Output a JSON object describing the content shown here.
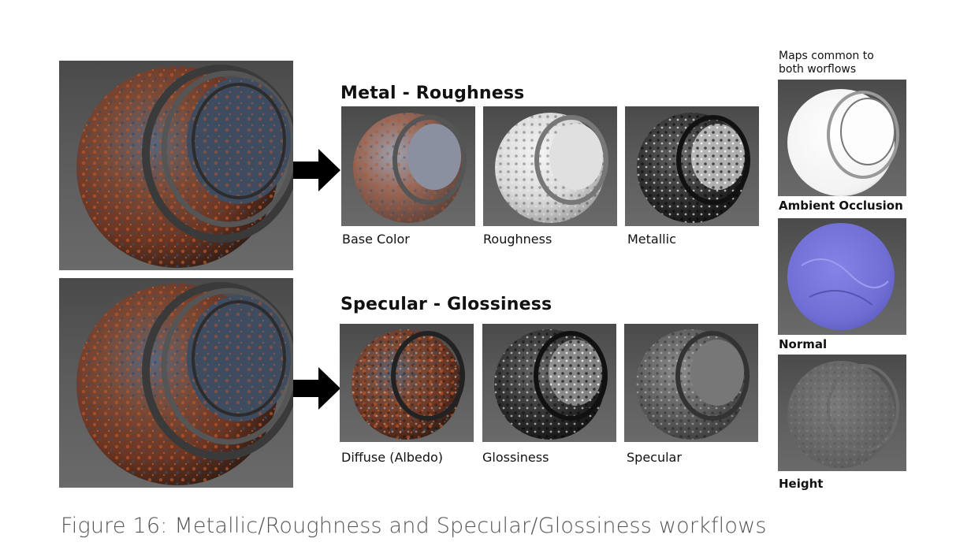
{
  "headings": {
    "metal": "Metal - Roughness",
    "specular": "Specular - Glossiness"
  },
  "metal_maps": [
    "Base Color",
    "Roughness",
    "Metallic"
  ],
  "spec_maps": [
    "Diffuse (Albedo)",
    "Glossiness",
    "Specular"
  ],
  "common": {
    "note_line1": "Maps common to",
    "note_line2": "both worflows",
    "labels": [
      "Ambient Occlusion",
      "Normal",
      "Height"
    ]
  },
  "caption": "Figure 16: Metallic/Roughness and Specular/Glossiness workflows",
  "colors": {
    "rust": "#8a3e22",
    "steel_blue": "#3c4b60",
    "normal_blue": "#7472d8",
    "panel_bg": "#555555"
  }
}
